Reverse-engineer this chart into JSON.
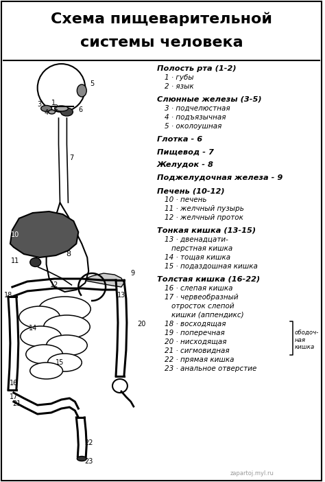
{
  "title_line1": "Схема пищеварительной",
  "title_line2": "системы человека",
  "bg_color": "#ffffff",
  "border_color": "#000000",
  "text_color": "#000000",
  "right_panel": [
    {
      "text": "Полость рта (1-2)",
      "bold": true,
      "italic": true,
      "indent": 0
    },
    {
      "text": "1 · губы",
      "bold": false,
      "italic": true,
      "indent": 1
    },
    {
      "text": "2 · язык",
      "bold": false,
      "italic": true,
      "indent": 1
    },
    {
      "text": "",
      "bold": false,
      "italic": false,
      "indent": 0
    },
    {
      "text": "Слюнные железы (3-5)",
      "bold": true,
      "italic": true,
      "indent": 0
    },
    {
      "text": "3 · подчелюстная",
      "bold": false,
      "italic": true,
      "indent": 1
    },
    {
      "text": "4 · подъязычная",
      "bold": false,
      "italic": true,
      "indent": 1
    },
    {
      "text": "5 · околоушная",
      "bold": false,
      "italic": true,
      "indent": 1
    },
    {
      "text": "",
      "bold": false,
      "italic": false,
      "indent": 0
    },
    {
      "text": "Глотка - 6",
      "bold": true,
      "italic": true,
      "indent": 0
    },
    {
      "text": "",
      "bold": false,
      "italic": false,
      "indent": 0
    },
    {
      "text": "Пищевод - 7",
      "bold": true,
      "italic": true,
      "indent": 0
    },
    {
      "text": "",
      "bold": false,
      "italic": false,
      "indent": 0
    },
    {
      "text": "Желудок - 8",
      "bold": true,
      "italic": true,
      "indent": 0
    },
    {
      "text": "",
      "bold": false,
      "italic": false,
      "indent": 0
    },
    {
      "text": "Поджелудочная железа - 9",
      "bold": true,
      "italic": true,
      "indent": 0
    },
    {
      "text": "",
      "bold": false,
      "italic": false,
      "indent": 0
    },
    {
      "text": "Печень (10-12)",
      "bold": true,
      "italic": true,
      "indent": 0
    },
    {
      "text": "10 · печень",
      "bold": false,
      "italic": true,
      "indent": 1
    },
    {
      "text": "11 · желчный пузырь",
      "bold": false,
      "italic": true,
      "indent": 1
    },
    {
      "text": "12 · желчный проток",
      "bold": false,
      "italic": true,
      "indent": 1
    },
    {
      "text": "",
      "bold": false,
      "italic": false,
      "indent": 0
    },
    {
      "text": "Тонкая кишка (13-15)",
      "bold": true,
      "italic": true,
      "indent": 0
    },
    {
      "text": "13 · двенадцати-",
      "bold": false,
      "italic": true,
      "indent": 1
    },
    {
      "text": "перстная кишка",
      "bold": false,
      "italic": true,
      "indent": 2
    },
    {
      "text": "14 · тощая кишка",
      "bold": false,
      "italic": true,
      "indent": 1
    },
    {
      "text": "15 · подаздошная кишка",
      "bold": false,
      "italic": true,
      "indent": 1
    },
    {
      "text": "",
      "bold": false,
      "italic": false,
      "indent": 0
    },
    {
      "text": "Толстая кишка (16-22)",
      "bold": true,
      "italic": true,
      "indent": 0
    },
    {
      "text": "16 · слепая кишка",
      "bold": false,
      "italic": true,
      "indent": 1
    },
    {
      "text": "17 · червеобразный",
      "bold": false,
      "italic": true,
      "indent": 1
    },
    {
      "text": "отросток слепой",
      "bold": false,
      "italic": true,
      "indent": 2
    },
    {
      "text": "кишки (аппендикс)",
      "bold": false,
      "italic": true,
      "indent": 2
    },
    {
      "text": "18 · восходящая",
      "bold": false,
      "italic": true,
      "indent": 1
    },
    {
      "text": "19 · поперечная",
      "bold": false,
      "italic": true,
      "indent": 1
    },
    {
      "text": "20 · нисходящая",
      "bold": false,
      "italic": true,
      "indent": 1
    },
    {
      "text": "21 · сигмовидная",
      "bold": false,
      "italic": true,
      "indent": 1
    },
    {
      "text": "22 · прямая кишка",
      "bold": false,
      "italic": true,
      "indent": 1
    },
    {
      "text": "23 · анальное отверстие",
      "bold": false,
      "italic": true,
      "indent": 1
    }
  ],
  "watermark": "zapartoj.myl.ru"
}
